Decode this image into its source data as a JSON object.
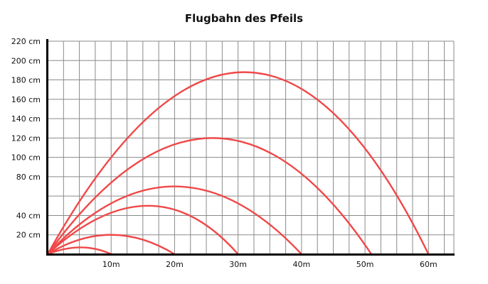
{
  "chart_data": {
    "type": "line",
    "title": "Flugbahn des Pfeils",
    "xlabel": "",
    "ylabel": "",
    "x_unit_ticks": [
      {
        "value": 10,
        "label": "10m"
      },
      {
        "value": 20,
        "label": "20m"
      },
      {
        "value": 30,
        "label": "30m"
      },
      {
        "value": 40,
        "label": "40m"
      },
      {
        "value": 50,
        "label": "50m"
      },
      {
        "value": 60,
        "label": "60m"
      }
    ],
    "y_ticks": [
      {
        "value": 20,
        "label": "20 cm"
      },
      {
        "value": 40,
        "label": "40 cm"
      },
      {
        "value": 80,
        "label": "80 cm"
      },
      {
        "value": 100,
        "label": "100 cm"
      },
      {
        "value": 120,
        "label": "120 cm"
      },
      {
        "value": 140,
        "label": "140 cm"
      },
      {
        "value": 160,
        "label": "160 cm"
      },
      {
        "value": 180,
        "label": "180 cm"
      },
      {
        "value": 200,
        "label": "200 cm"
      },
      {
        "value": 220,
        "label": "220 cm"
      }
    ],
    "y_grid_rows": 11,
    "x_minor_step": 2.5,
    "xlim": [
      0,
      64
    ],
    "grid": true,
    "line_color": "#f04848",
    "series": [
      {
        "range_m": 10,
        "peak_x_m": 5.2,
        "peak_height_cm": 7
      },
      {
        "range_m": 20,
        "peak_x_m": 10,
        "peak_height_cm": 20
      },
      {
        "range_m": 30,
        "peak_x_m": 15.8,
        "peak_height_cm": 50
      },
      {
        "range_m": 40,
        "peak_x_m": 20,
        "peak_height_cm": 70
      },
      {
        "range_m": 51,
        "peak_x_m": 26,
        "peak_height_cm": 120
      },
      {
        "range_m": 60,
        "peak_x_m": 31,
        "peak_height_cm": 188
      }
    ]
  }
}
